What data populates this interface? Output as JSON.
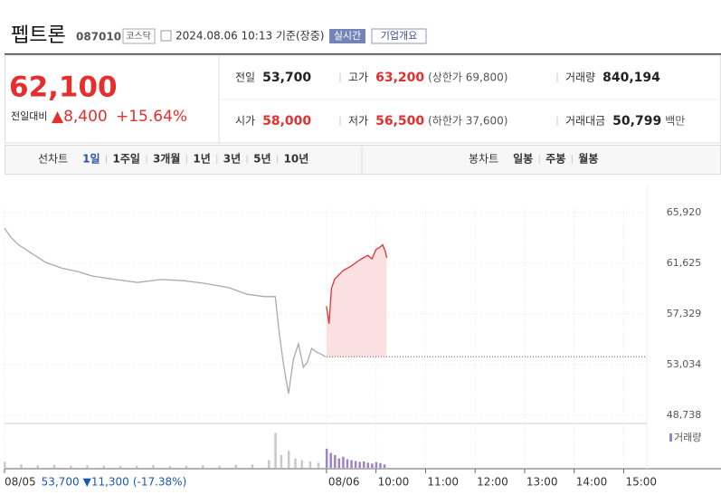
{
  "header": {
    "title": "펩트론",
    "code": "087010",
    "market": "코스닥",
    "timestamp": "2024.08.06 10:13 기준(장중)",
    "realtime": "실시간",
    "company_button": "기업개요"
  },
  "quote": {
    "price": "62,100",
    "change_label": "전일대비",
    "change": "▲8,400",
    "change_pct": "+15.64%"
  },
  "stats": [
    {
      "label": "전일",
      "value": "53,700"
    },
    {
      "label": "고가",
      "value": "63,200",
      "extra": "(상한가 69,800)"
    },
    {
      "label": "거래량",
      "value": "840,194"
    },
    {
      "label": "시가",
      "value": "58,000"
    },
    {
      "label": "저가",
      "value": "56,500",
      "extra": "(하한가 37,600)"
    },
    {
      "label": "거래대금",
      "value": "50,799",
      "extra": "백만"
    }
  ],
  "tabs": {
    "line_label": "선차트",
    "periods": [
      "1일",
      "1주일",
      "3개월",
      "1년",
      "3년",
      "5년",
      "10년"
    ],
    "candle_label": "봉차트",
    "candle_periods": [
      "일봉",
      "주봉",
      "월봉"
    ]
  },
  "chart_data": {
    "type": "line",
    "series": [
      {
        "color": "#aaaaaa",
        "x": [
          0,
          8,
          17,
          30,
          50,
          70,
          90,
          106,
          130,
          161,
          190,
          217,
          245,
          272,
          294,
          315,
          328,
          333,
          338,
          344,
          350,
          356,
          362,
          367,
          372,
          378,
          384,
          389
        ],
        "values": [
          64600,
          63800,
          63200,
          62600,
          61700,
          61200,
          60900,
          60550,
          60300,
          60000,
          60250,
          60150,
          59900,
          59550,
          59000,
          58800,
          58800,
          55570,
          53000,
          50580,
          53500,
          54800,
          52800,
          53260,
          54400,
          54100,
          53900,
          53700
        ]
      },
      {
        "color": "#e52f2f",
        "fill": "#fbe0e2",
        "x": [
          390,
          393,
          396,
          400,
          410,
          420,
          430,
          440,
          445,
          450,
          455,
          458,
          461,
          463
        ],
        "values": [
          58000,
          56500,
          59500,
          60300,
          61000,
          61400,
          61900,
          62300,
          62000,
          62800,
          63000,
          63200,
          62700,
          62100
        ]
      }
    ],
    "baseline": 53700,
    "xlim": [
      0,
      778
    ],
    "xticks": [
      {
        "value": 0,
        "label": "08/05"
      },
      {
        "value": 390,
        "label": "08/06"
      },
      {
        "value": 450,
        "label": "10:00"
      },
      {
        "value": 510,
        "label": "11:00"
      },
      {
        "value": 570,
        "label": "12:00"
      },
      {
        "value": 630,
        "label": "13:00"
      },
      {
        "value": 690,
        "label": "14:00"
      },
      {
        "value": 750,
        "label": "15:00"
      }
    ],
    "ylim": [
      48738,
      65920
    ],
    "yticks": [
      {
        "value": 65920,
        "label": "65,920"
      },
      {
        "value": 61625,
        "label": "61,625"
      },
      {
        "value": 57329,
        "label": "57,329"
      },
      {
        "value": 53034,
        "label": "53,034"
      },
      {
        "value": 48738,
        "label": "48,738"
      }
    ],
    "prev_day_note": {
      "close": "53,700",
      "change": "▼11,300",
      "change_pct": "(-17.38%)"
    },
    "volume": {
      "name": "거래량",
      "vlim": [
        0,
        100
      ],
      "series": [
        {
          "color": "#c8c8c8",
          "x": [
            0,
            20,
            40,
            60,
            80,
            100,
            120,
            140,
            160,
            180,
            200,
            220,
            240,
            260,
            280,
            300,
            320,
            328,
            335,
            344,
            352,
            360,
            370,
            380
          ],
          "values": [
            14,
            8,
            6,
            7,
            5,
            6,
            5,
            4,
            5,
            6,
            4,
            5,
            6,
            5,
            7,
            8,
            18,
            82,
            30,
            40,
            22,
            18,
            15,
            12
          ]
        },
        {
          "color": "#9b82c9",
          "x": [
            390,
            395,
            400,
            405,
            410,
            415,
            420,
            425,
            430,
            435,
            440,
            445,
            450,
            455,
            460
          ],
          "values": [
            45,
            35,
            30,
            22,
            26,
            20,
            18,
            16,
            14,
            15,
            12,
            10,
            13,
            11,
            8
          ]
        }
      ]
    }
  }
}
